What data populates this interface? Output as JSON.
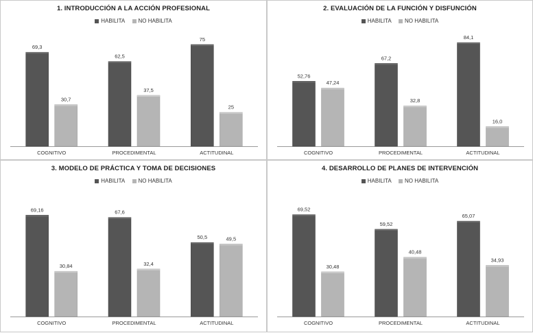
{
  "colors": {
    "habilita": "#555555",
    "no_habilita": "#b5b5b5"
  },
  "chart_data": [
    {
      "type": "bar",
      "title": "1. INTRODUCCIÓN A LA ACCIÓN PROFESIONAL",
      "categories": [
        "COGNITIVO",
        "PROCEDIMENTAL",
        "ACTITUDINAL"
      ],
      "series": [
        {
          "name": "HABILITA",
          "values": [
            69.3,
            62.5,
            75
          ],
          "labels": [
            "69,3",
            "62,5",
            "75"
          ]
        },
        {
          "name": "NO HABILITA",
          "values": [
            30.7,
            37.5,
            25
          ],
          "labels": [
            "30,7",
            "37,5",
            "25"
          ]
        }
      ],
      "ylim": [
        0,
        80
      ],
      "grid": false,
      "legend": "top"
    },
    {
      "type": "bar",
      "title": "2. EVALUACIÓN DE LA FUNCIÓN Y DISFUNCIÓN",
      "categories": [
        "COGNITIVO",
        "PROCEDIMENTAL",
        "ACTITUDINAL"
      ],
      "series": [
        {
          "name": "HABILITA",
          "values": [
            52.76,
            67.2,
            84.1
          ],
          "labels": [
            "52,76",
            "67,2",
            "84,1"
          ]
        },
        {
          "name": "NO HABILITA",
          "values": [
            47.24,
            32.8,
            16.0
          ],
          "labels": [
            "47,24",
            "32,8",
            "16,0"
          ]
        }
      ],
      "ylim": [
        0,
        88
      ],
      "grid": false,
      "legend": "top"
    },
    {
      "type": "bar",
      "title": "3. MODELO DE PRÁCTICA Y TOMA DE DECISIONES",
      "categories": [
        "COGNITIVO",
        "PROCEDIMENTAL",
        "ACTITUDINAL"
      ],
      "series": [
        {
          "name": "HABILITA",
          "values": [
            69.16,
            67.6,
            50.5
          ],
          "labels": [
            "69,16",
            "67,6",
            "50,5"
          ]
        },
        {
          "name": "NO HABILITA",
          "values": [
            30.84,
            32.4,
            49.5
          ],
          "labels": [
            "30,84",
            "32,4",
            "49,5"
          ]
        }
      ],
      "ylim": [
        0,
        74
      ],
      "grid": false,
      "legend": "top"
    },
    {
      "type": "bar",
      "title": "4. DESARROLLO DE PLANES DE INTERVENCIÓN",
      "categories": [
        "COGNITIVO",
        "PROCEDIMENTAL",
        "ACTITUDINAL"
      ],
      "series": [
        {
          "name": "HABILITA",
          "values": [
            69.52,
            59.52,
            65.07
          ],
          "labels": [
            "69,52",
            "59,52",
            "65,07"
          ]
        },
        {
          "name": "NO HABILITA",
          "values": [
            30.48,
            40.48,
            34.93
          ],
          "labels": [
            "30,48",
            "40,48",
            "34,93"
          ]
        }
      ],
      "ylim": [
        0,
        74
      ],
      "grid": false,
      "legend": "top"
    }
  ]
}
